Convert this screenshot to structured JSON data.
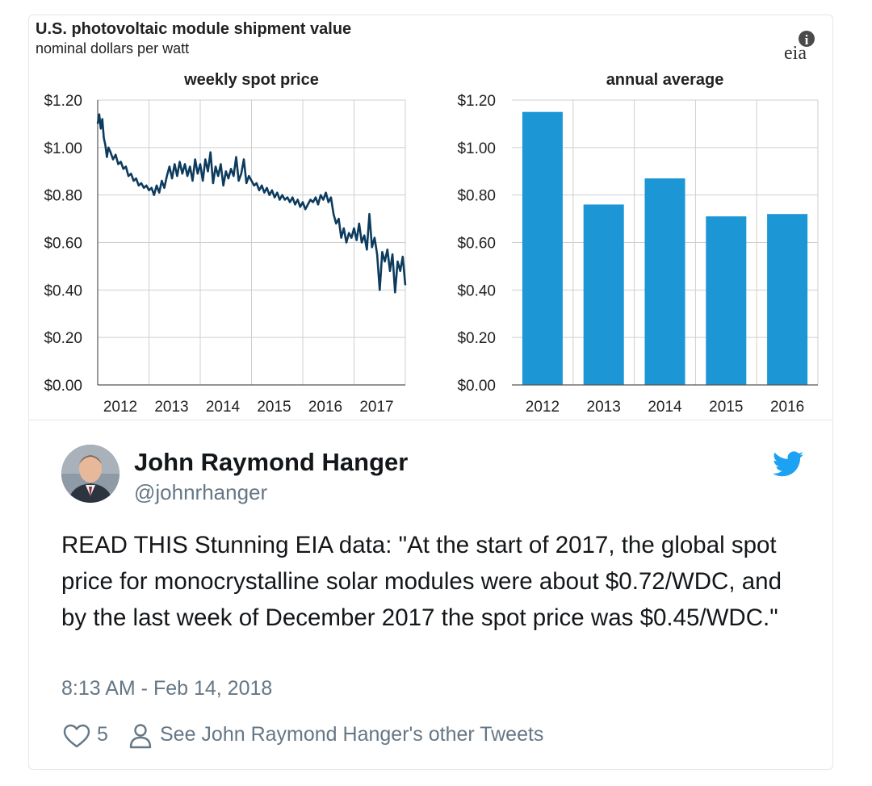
{
  "figure": {
    "title": "U.S. photovoltaic module shipment value",
    "subtitle": "nominal dollars per watt",
    "logo_text": "eia"
  },
  "chart_data": [
    {
      "type": "line",
      "title": "weekly spot price",
      "y_ticks": [
        "$1.20",
        "$1.00",
        "$0.80",
        "$0.60",
        "$0.40",
        "$0.20",
        "$0.00"
      ],
      "x_ticks": [
        "2012",
        "2013",
        "2014",
        "2015",
        "2016",
        "2017"
      ],
      "ylim": [
        0,
        1.2
      ],
      "xlim": [
        2012,
        2018
      ],
      "grid": true,
      "series": [
        {
          "color": "#0d3b5e",
          "points": [
            [
              2012.0,
              1.1
            ],
            [
              2012.03,
              1.14
            ],
            [
              2012.06,
              1.08
            ],
            [
              2012.09,
              1.12
            ],
            [
              2012.12,
              1.04
            ],
            [
              2012.15,
              1.01
            ],
            [
              2012.18,
              0.96
            ],
            [
              2012.21,
              1.0
            ],
            [
              2012.25,
              0.98
            ],
            [
              2012.3,
              0.95
            ],
            [
              2012.35,
              0.97
            ],
            [
              2012.4,
              0.93
            ],
            [
              2012.45,
              0.94
            ],
            [
              2012.5,
              0.91
            ],
            [
              2012.55,
              0.92
            ],
            [
              2012.6,
              0.88
            ],
            [
              2012.65,
              0.89
            ],
            [
              2012.7,
              0.86
            ],
            [
              2012.75,
              0.87
            ],
            [
              2012.8,
              0.84
            ],
            [
              2012.85,
              0.85
            ],
            [
              2012.9,
              0.83
            ],
            [
              2012.95,
              0.84
            ],
            [
              2013.0,
              0.82
            ],
            [
              2013.05,
              0.83
            ],
            [
              2013.1,
              0.8
            ],
            [
              2013.15,
              0.84
            ],
            [
              2013.2,
              0.81
            ],
            [
              2013.25,
              0.86
            ],
            [
              2013.3,
              0.83
            ],
            [
              2013.35,
              0.88
            ],
            [
              2013.4,
              0.92
            ],
            [
              2013.45,
              0.87
            ],
            [
              2013.5,
              0.93
            ],
            [
              2013.55,
              0.88
            ],
            [
              2013.6,
              0.94
            ],
            [
              2013.65,
              0.89
            ],
            [
              2013.7,
              0.93
            ],
            [
              2013.75,
              0.88
            ],
            [
              2013.8,
              0.92
            ],
            [
              2013.85,
              0.86
            ],
            [
              2013.9,
              0.95
            ],
            [
              2013.95,
              0.89
            ],
            [
              2014.0,
              0.93
            ],
            [
              2014.05,
              0.86
            ],
            [
              2014.1,
              0.95
            ],
            [
              2014.15,
              0.9
            ],
            [
              2014.2,
              0.98
            ],
            [
              2014.25,
              0.85
            ],
            [
              2014.3,
              0.92
            ],
            [
              2014.35,
              0.88
            ],
            [
              2014.4,
              0.93
            ],
            [
              2014.45,
              0.84
            ],
            [
              2014.5,
              0.9
            ],
            [
              2014.55,
              0.87
            ],
            [
              2014.6,
              0.91
            ],
            [
              2014.65,
              0.88
            ],
            [
              2014.7,
              0.96
            ],
            [
              2014.75,
              0.86
            ],
            [
              2014.8,
              0.89
            ],
            [
              2014.85,
              0.95
            ],
            [
              2014.9,
              0.85
            ],
            [
              2014.95,
              0.88
            ],
            [
              2015.0,
              0.86
            ],
            [
              2015.05,
              0.84
            ],
            [
              2015.1,
              0.85
            ],
            [
              2015.15,
              0.82
            ],
            [
              2015.2,
              0.84
            ],
            [
              2015.25,
              0.81
            ],
            [
              2015.3,
              0.83
            ],
            [
              2015.35,
              0.8
            ],
            [
              2015.4,
              0.82
            ],
            [
              2015.45,
              0.79
            ],
            [
              2015.5,
              0.81
            ],
            [
              2015.55,
              0.78
            ],
            [
              2015.6,
              0.8
            ],
            [
              2015.65,
              0.78
            ],
            [
              2015.7,
              0.79
            ],
            [
              2015.75,
              0.77
            ],
            [
              2015.8,
              0.79
            ],
            [
              2015.85,
              0.76
            ],
            [
              2015.9,
              0.78
            ],
            [
              2015.95,
              0.75
            ],
            [
              2016.0,
              0.77
            ],
            [
              2016.05,
              0.74
            ],
            [
              2016.1,
              0.76
            ],
            [
              2016.15,
              0.78
            ],
            [
              2016.2,
              0.77
            ],
            [
              2016.25,
              0.79
            ],
            [
              2016.3,
              0.76
            ],
            [
              2016.35,
              0.8
            ],
            [
              2016.4,
              0.78
            ],
            [
              2016.45,
              0.81
            ],
            [
              2016.5,
              0.77
            ],
            [
              2016.55,
              0.79
            ],
            [
              2016.6,
              0.72
            ],
            [
              2016.65,
              0.68
            ],
            [
              2016.7,
              0.7
            ],
            [
              2016.75,
              0.62
            ],
            [
              2016.8,
              0.66
            ],
            [
              2016.85,
              0.6
            ],
            [
              2016.9,
              0.64
            ],
            [
              2016.95,
              0.62
            ],
            [
              2017.0,
              0.66
            ],
            [
              2017.05,
              0.61
            ],
            [
              2017.1,
              0.68
            ],
            [
              2017.15,
              0.6
            ],
            [
              2017.2,
              0.63
            ],
            [
              2017.25,
              0.57
            ],
            [
              2017.3,
              0.72
            ],
            [
              2017.35,
              0.58
            ],
            [
              2017.4,
              0.62
            ],
            [
              2017.45,
              0.55
            ],
            [
              2017.5,
              0.4
            ],
            [
              2017.55,
              0.56
            ],
            [
              2017.6,
              0.52
            ],
            [
              2017.65,
              0.57
            ],
            [
              2017.7,
              0.48
            ],
            [
              2017.75,
              0.55
            ],
            [
              2017.8,
              0.39
            ],
            [
              2017.85,
              0.52
            ],
            [
              2017.9,
              0.48
            ],
            [
              2017.95,
              0.54
            ],
            [
              2018.0,
              0.42
            ]
          ]
        }
      ]
    },
    {
      "type": "bar",
      "title": "annual average",
      "y_ticks": [
        "$1.20",
        "$1.00",
        "$0.80",
        "$0.60",
        "$0.40",
        "$0.20",
        "$0.00"
      ],
      "ylim": [
        0,
        1.2
      ],
      "grid": true,
      "categories": [
        "2012",
        "2013",
        "2014",
        "2015",
        "2016"
      ],
      "values": [
        1.15,
        0.76,
        0.87,
        0.71,
        0.72
      ],
      "color": "#1c96d4"
    }
  ],
  "tweet": {
    "author_name": "John Raymond Hanger",
    "handle": "@johnrhanger",
    "text": "READ THIS Stunning EIA data: \"At the start of 2017, the global spot price for monocrystalline solar modules were about $0.72/WDC, and by the last week of December 2017 the spot price was $0.45/WDC.\"",
    "timestamp": "8:13 AM - Feb 14, 2018",
    "like_count": "5",
    "other_tweets_link": "See John Raymond Hanger's other Tweets"
  },
  "icons": {
    "like": "heart-icon",
    "profile": "person-icon",
    "brand": "twitter-bird-icon"
  },
  "colors": {
    "line": "#0d3b5e",
    "bar": "#1c96d4",
    "twitter_blue": "#1da1f2",
    "secondary_text": "#657786",
    "border": "#e1e8ed"
  }
}
